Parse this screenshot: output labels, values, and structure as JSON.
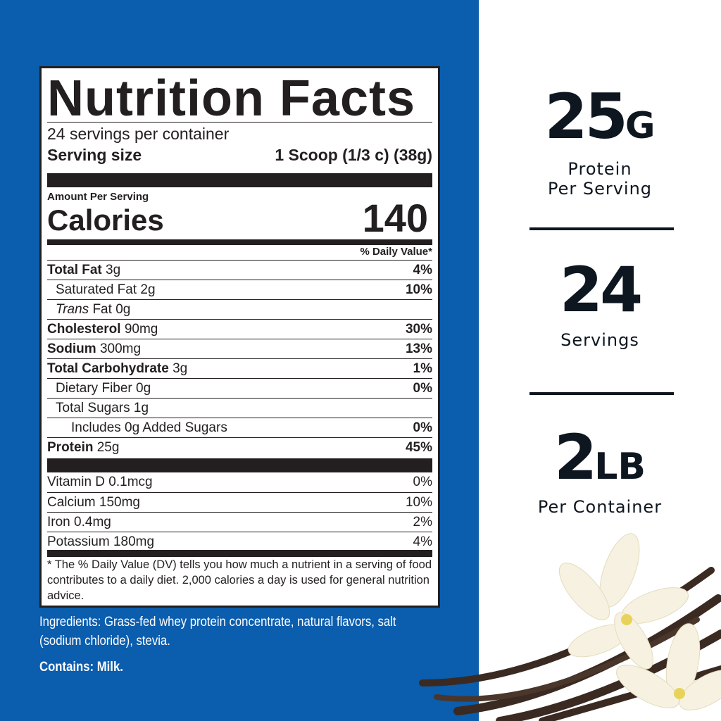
{
  "label": {
    "title": "Nutrition Facts",
    "servings_per_container": "24 servings per container",
    "serving_size_label": "Serving size",
    "serving_size_value": "1 Scoop (1/3 c) (38g)",
    "amount_per_serving": "Amount Per Serving",
    "calories_label": "Calories",
    "calories_value": "140",
    "dv_header": "% Daily Value*",
    "nutrients": [
      {
        "name": "Total Fat",
        "amount": "3g",
        "dv": "4%"
      },
      {
        "name": "Saturated Fat",
        "amount": "2g",
        "dv": "10%"
      },
      {
        "name": "Trans",
        "name_suffix": "Fat",
        "amount": "0g",
        "dv": ""
      },
      {
        "name": "Cholesterol",
        "amount": "90mg",
        "dv": "30%"
      },
      {
        "name": "Sodium",
        "amount": "300mg",
        "dv": "13%"
      },
      {
        "name": "Total Carbohydrate",
        "amount": "3g",
        "dv": "1%"
      },
      {
        "name": "Dietary Fiber",
        "amount": "0g",
        "dv": "0%"
      },
      {
        "name": "Total Sugars",
        "amount": "1g",
        "dv": ""
      },
      {
        "name": "Includes 0g Added Sugars",
        "amount": "",
        "dv": "0%"
      },
      {
        "name": "Protein",
        "amount": "25g",
        "dv": "45%"
      }
    ],
    "vitamins": [
      {
        "name": "Vitamin D",
        "amount": "0.1mcg",
        "dv": "0%"
      },
      {
        "name": "Calcium",
        "amount": "150mg",
        "dv": "10%"
      },
      {
        "name": "Iron",
        "amount": "0.4mg",
        "dv": "2%"
      },
      {
        "name": "Potassium",
        "amount": "180mg",
        "dv": "4%"
      }
    ],
    "footnote": "* The % Daily Value (DV) tells you how much a nutrient in a serving of food contributes to a daily diet. 2,000 calories a day is used for general nutrition advice."
  },
  "ingredients": "Ingredients: Grass-fed whey protein concentrate, natural flavors, salt (sodium chloride), stevia.",
  "allergens": "Contains: Milk.",
  "highlights": [
    {
      "number": "25",
      "unit": "G",
      "caption_line1": "Protein",
      "caption_line2": "Per Serving"
    },
    {
      "number": "24",
      "unit": "",
      "caption_line1": "Servings",
      "caption_line2": ""
    },
    {
      "number": "2",
      "unit": "LB",
      "caption_line1": "Per Container",
      "caption_line2": ""
    }
  ],
  "colors": {
    "panel_blue": "#0b5dad",
    "ink": "#231f20",
    "highlight_ink": "#0e1620"
  }
}
